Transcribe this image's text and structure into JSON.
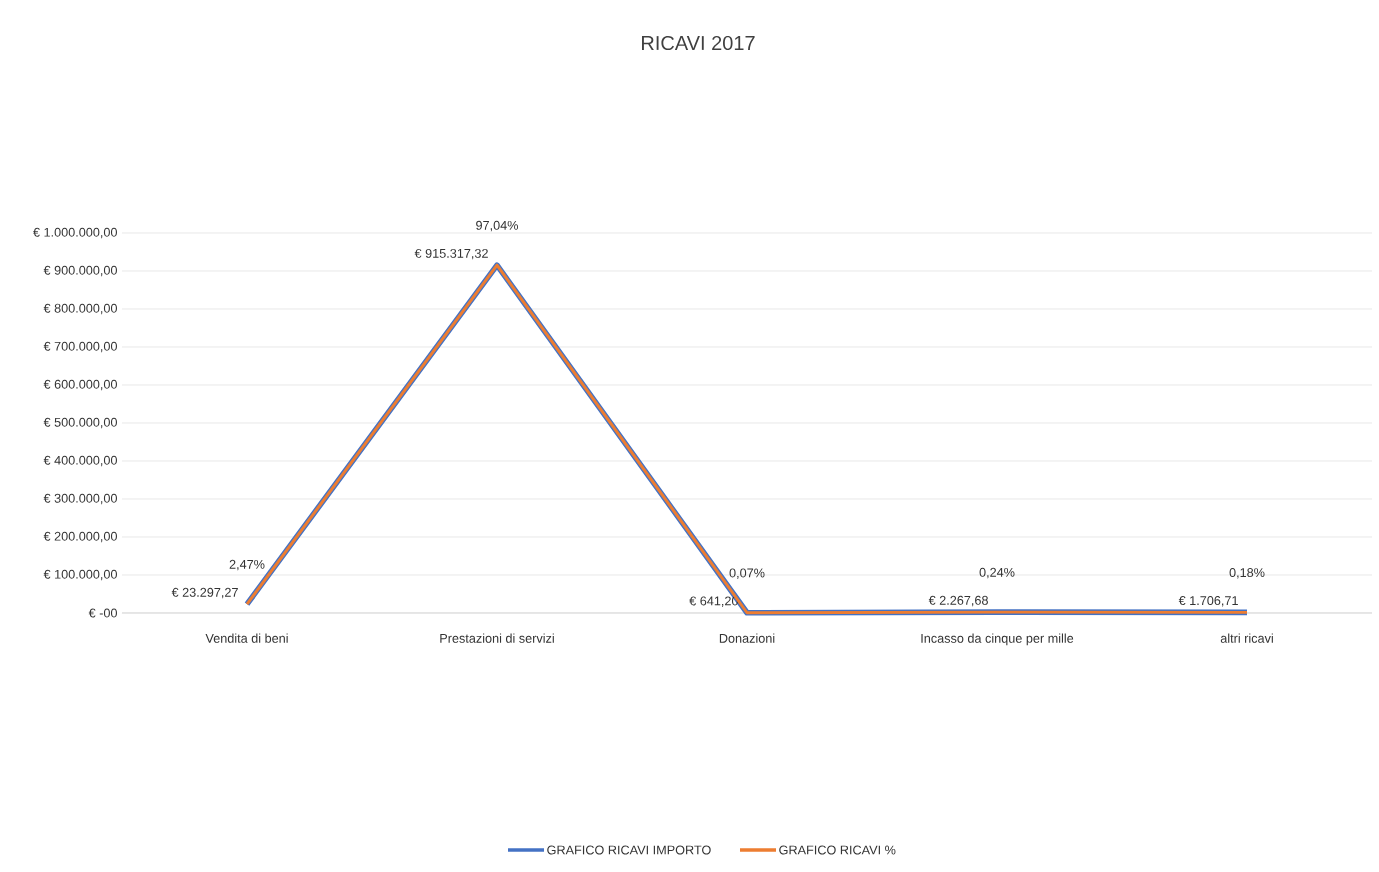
{
  "chart_data": {
    "type": "line",
    "title": "RICAVI 2017",
    "categories": [
      "Vendita di beni",
      "Prestazioni di servizi",
      "Donazioni",
      "Incasso da cinque per mille",
      "altri ricavi"
    ],
    "series": [
      {
        "name": "GRAFICO RICAVI IMPORTO",
        "color": "#4472c4",
        "values": [
          23297.27,
          915317.32,
          641.2,
          2267.68,
          1706.71
        ],
        "value_labels": [
          "€ 23.297,27",
          "€ 915.317,32",
          "€ 641,20",
          "€ 2.267,68",
          "€ 1.706,71"
        ]
      },
      {
        "name": "GRAFICO RICAVI %",
        "color": "#ed7d31",
        "axis": "y2",
        "values": [
          2.47,
          97.04,
          0.07,
          0.24,
          0.18
        ],
        "value_labels": [
          "2,47%",
          "97,04%",
          "0,07%",
          "0,24%",
          "0,18%"
        ]
      }
    ],
    "ylim": [
      0,
      1000000
    ],
    "yticks": [
      {
        "value": 0,
        "label": "€ -00"
      },
      {
        "value": 100000,
        "label": "€ 100.000,00"
      },
      {
        "value": 200000,
        "label": "€ 200.000,00"
      },
      {
        "value": 300000,
        "label": "€ 300.000,00"
      },
      {
        "value": 400000,
        "label": "€ 400.000,00"
      },
      {
        "value": 500000,
        "label": "€ 500.000,00"
      },
      {
        "value": 600000,
        "label": "€ 600.000,00"
      },
      {
        "value": 700000,
        "label": "€ 700.000,00"
      },
      {
        "value": 800000,
        "label": "€ 800.000,00"
      },
      {
        "value": 900000,
        "label": "€ 900.000,00"
      },
      {
        "value": 1000000,
        "label": "€ 1.000.000,00"
      }
    ],
    "y2lim": [
      0,
      106
    ],
    "grid": "y",
    "legend": "bottom",
    "marker": "none",
    "line_style": "solid"
  }
}
